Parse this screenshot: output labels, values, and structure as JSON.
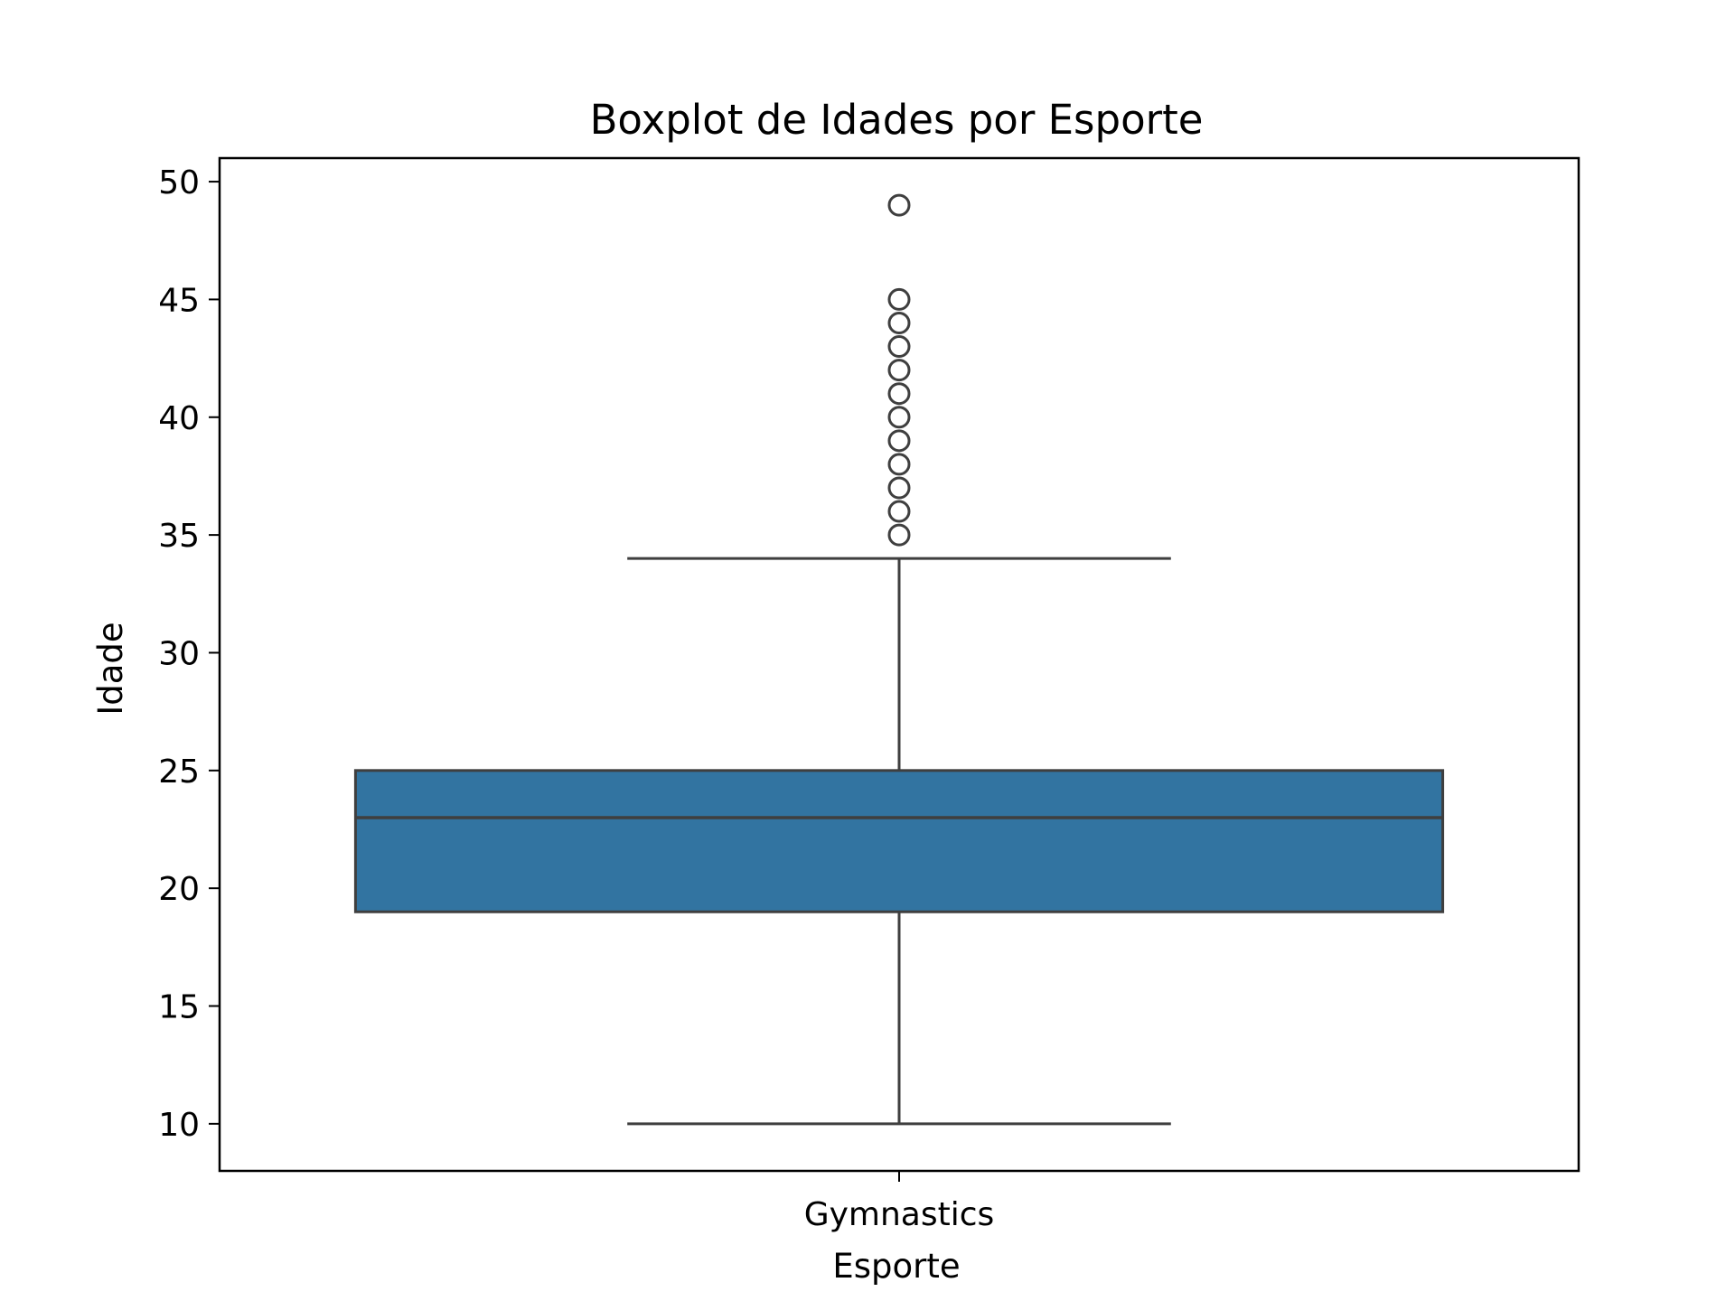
{
  "chart_data": {
    "type": "box",
    "title": "Boxplot de Idades por Esporte",
    "xlabel": "Esporte",
    "ylabel": "Idade",
    "categories": [
      "Gymnastics"
    ],
    "ylim": [
      8,
      51
    ],
    "yticks": [
      10,
      15,
      20,
      25,
      30,
      35,
      40,
      45,
      50
    ],
    "grid": false,
    "legend": "none",
    "boxes": [
      {
        "category": "Gymnastics",
        "whisker_low": 10,
        "q1": 19,
        "median": 23,
        "q3": 25,
        "whisker_high": 34,
        "outliers": [
          35,
          36,
          37,
          38,
          39,
          40,
          41,
          42,
          43,
          44,
          45,
          49
        ]
      }
    ],
    "colors": {
      "box_fill": "#3274a1",
      "box_edge": "#3f3f3f",
      "axes": "#000000"
    }
  }
}
